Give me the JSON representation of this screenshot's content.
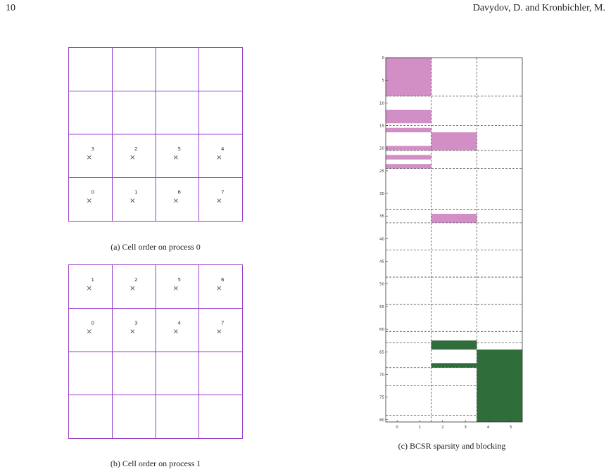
{
  "header": {
    "page_number": "10",
    "running_head": "Davydov, D. and Kronbichler, M."
  },
  "figure_a": {
    "caption": "(a) Cell order on process 0",
    "rows": 4,
    "cols": 4,
    "cells": [
      {
        "label": "3",
        "row": 2,
        "col": 0
      },
      {
        "label": "2",
        "row": 2,
        "col": 1
      },
      {
        "label": "5",
        "row": 2,
        "col": 2
      },
      {
        "label": "4",
        "row": 2,
        "col": 3
      },
      {
        "label": "0",
        "row": 3,
        "col": 0
      },
      {
        "label": "1",
        "row": 3,
        "col": 1
      },
      {
        "label": "6",
        "row": 3,
        "col": 2
      },
      {
        "label": "7",
        "row": 3,
        "col": 3
      }
    ]
  },
  "figure_b": {
    "caption": "(b) Cell order on process 1",
    "rows": 4,
    "cols": 4,
    "cells": [
      {
        "label": "1",
        "row": 0,
        "col": 0
      },
      {
        "label": "2",
        "row": 0,
        "col": 1
      },
      {
        "label": "5",
        "row": 0,
        "col": 2
      },
      {
        "label": "6",
        "row": 0,
        "col": 3
      },
      {
        "label": "0",
        "row": 1,
        "col": 0
      },
      {
        "label": "3",
        "row": 1,
        "col": 1
      },
      {
        "label": "4",
        "row": 1,
        "col": 2
      },
      {
        "label": "7",
        "row": 1,
        "col": 3
      }
    ]
  },
  "chart_data": {
    "type": "heatmap",
    "title": "",
    "caption": "(c) BCSR sparsity and blocking",
    "xlim": [
      -0.5,
      5.5
    ],
    "ylim": [
      0,
      80.5
    ],
    "y_inverted": true,
    "x_ticks": [
      0,
      1,
      2,
      3,
      4,
      5
    ],
    "y_ticks": [
      0,
      5,
      10,
      15,
      20,
      25,
      30,
      35,
      40,
      45,
      50,
      55,
      60,
      65,
      70,
      75,
      80
    ],
    "grid": "dashed block boundaries",
    "block_col_boundaries": [
      1.5,
      3.5
    ],
    "block_row_boundaries": [
      8.5,
      15,
      20.5,
      24.5,
      33.5,
      36.5,
      42.5,
      48.5,
      54.5,
      60.5,
      63,
      68.5,
      72.5,
      79
    ],
    "colors": {
      "process_0": "#d18fc6",
      "process_1": "#2e6e3a",
      "grid": "#555555",
      "frame": "#333333"
    },
    "filled_regions": [
      {
        "process": 0,
        "x0": -0.5,
        "x1": 1.5,
        "y0": 0,
        "y1": 8.5
      },
      {
        "process": 0,
        "x0": -0.5,
        "x1": 1.5,
        "y0": 11.5,
        "y1": 14.5
      },
      {
        "process": 0,
        "x0": -0.5,
        "x1": 1.5,
        "y0": 15.5,
        "y1": 16.5
      },
      {
        "process": 0,
        "x0": -0.5,
        "x1": 1.5,
        "y0": 19.5,
        "y1": 20.5
      },
      {
        "process": 0,
        "x0": -0.5,
        "x1": 1.5,
        "y0": 21.5,
        "y1": 22.5
      },
      {
        "process": 0,
        "x0": -0.5,
        "x1": 1.5,
        "y0": 23.5,
        "y1": 24.5
      },
      {
        "process": 0,
        "x0": 1.5,
        "x1": 3.5,
        "y0": 16.5,
        "y1": 20.5
      },
      {
        "process": 0,
        "x0": 1.5,
        "x1": 3.5,
        "y0": 34.5,
        "y1": 36.5
      },
      {
        "process": 1,
        "x0": 1.5,
        "x1": 3.5,
        "y0": 62.5,
        "y1": 64.5
      },
      {
        "process": 1,
        "x0": 1.5,
        "x1": 3.5,
        "y0": 67.5,
        "y1": 68.5
      },
      {
        "process": 1,
        "x0": 3.5,
        "x1": 5.5,
        "y0": 64.5,
        "y1": 80.5
      }
    ]
  }
}
